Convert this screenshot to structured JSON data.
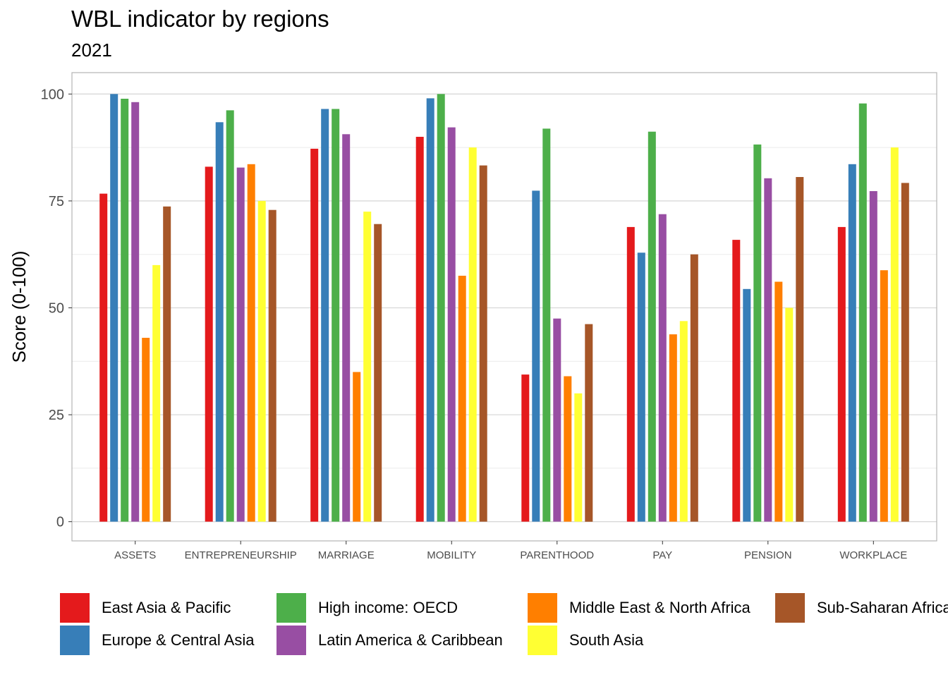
{
  "chart_data": {
    "type": "bar",
    "title": "WBL indicator by regions",
    "subtitle": "2021",
    "xlabel": "",
    "ylabel": "Score (0-100)",
    "ylim": [
      -4.5,
      105
    ],
    "yticks": [
      0,
      25,
      50,
      75,
      100
    ],
    "grid": true,
    "legend_position": "bottom",
    "categories": [
      "ASSETS",
      "ENTREPRENEURSHIP",
      "MARRIAGE",
      "MOBILITY",
      "PARENTHOOD",
      "PAY",
      "PENSION",
      "WORKPLACE"
    ],
    "series": [
      {
        "name": "East Asia & Pacific",
        "color": "#E41A1C",
        "values": [
          76.7,
          83.0,
          87.2,
          90.0,
          34.4,
          68.9,
          65.9,
          68.9
        ]
      },
      {
        "name": "Europe & Central Asia",
        "color": "#377EB8",
        "values": [
          100.0,
          93.4,
          96.5,
          99.0,
          77.4,
          62.9,
          54.4,
          83.6
        ]
      },
      {
        "name": "High income: OECD",
        "color": "#4DAF4A",
        "values": [
          98.9,
          96.2,
          96.5,
          100.0,
          91.9,
          91.2,
          88.2,
          97.8
        ]
      },
      {
        "name": "Latin America & Caribbean",
        "color": "#984EA3",
        "values": [
          98.1,
          82.8,
          90.6,
          92.2,
          47.5,
          71.9,
          80.3,
          77.3
        ]
      },
      {
        "name": "Middle East & North Africa",
        "color": "#FF7F00",
        "values": [
          43.0,
          83.6,
          35.0,
          57.5,
          34.0,
          43.8,
          56.1,
          58.8
        ]
      },
      {
        "name": "South Asia",
        "color": "#FFFF33",
        "values": [
          60.0,
          75.0,
          72.5,
          87.5,
          30.0,
          46.9,
          50.0,
          87.5
        ]
      },
      {
        "name": "Sub-Saharan Africa",
        "color": "#A65628",
        "values": [
          73.7,
          72.9,
          69.6,
          83.3,
          46.2,
          62.5,
          80.6,
          79.2
        ]
      }
    ]
  }
}
